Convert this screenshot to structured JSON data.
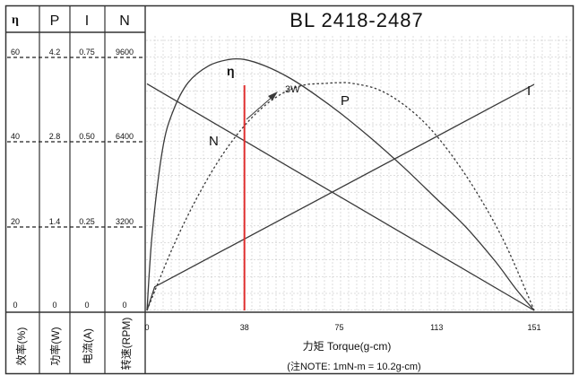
{
  "title": "BL 2418-2487",
  "header_cols": [
    "η",
    "P",
    "I",
    "N"
  ],
  "scale_columns": [
    {
      "name": "efficiency",
      "values": [
        "60",
        "40",
        "20",
        "0"
      ],
      "label": "效率(%)"
    },
    {
      "name": "power",
      "values": [
        "4.2",
        "2.8",
        "1.4",
        "0"
      ],
      "label": "功率(W)"
    },
    {
      "name": "current",
      "values": [
        "0.75",
        "0.50",
        "0.25",
        "0"
      ],
      "label": "电流(A)"
    },
    {
      "name": "speed",
      "values": [
        "9600",
        "6400",
        "3200",
        "0"
      ],
      "label": "转速(RPM)"
    }
  ],
  "x_tick_labels": [
    "0",
    "38",
    "75",
    "113",
    "151"
  ],
  "xlabel": "力矩 Torque(g-cm)",
  "note": "(注NOTE: 1mN-m = 10.2g-cm)",
  "annotations": {
    "power_rating": "3W"
  },
  "colors": {
    "line": "#3a3a3a",
    "marker": "#e03030",
    "grid": "#bdbdbd"
  },
  "chart_data": {
    "type": "line",
    "title": "BL 2418-2487",
    "xlabel": "力矩 Torque(g-cm)",
    "x_ticks": [
      0,
      38,
      75,
      113,
      151
    ],
    "xlim": [
      0,
      151
    ],
    "marker_x": 38,
    "grid": true,
    "series": [
      {
        "name": "η",
        "axis": "效率(%)",
        "ylim": [
          0,
          60
        ],
        "x": [
          0,
          2,
          6,
          10,
          16,
          24,
          32,
          38,
          46,
          56,
          66,
          76,
          88,
          100,
          112,
          124,
          136,
          144,
          151
        ],
        "values": [
          0,
          18,
          38,
          47,
          54,
          58,
          59.5,
          59.5,
          58,
          55,
          51,
          46.5,
          40.5,
          34,
          27,
          20,
          11.5,
          5,
          0
        ]
      },
      {
        "name": "P",
        "axis": "功率(W)",
        "ylim": [
          0,
          4.2
        ],
        "x": [
          0,
          10,
          20,
          30,
          40,
          50,
          60,
          70,
          75,
          80,
          90,
          100,
          110,
          120,
          130,
          140,
          151
        ],
        "values": [
          0,
          1.04,
          1.91,
          2.62,
          3.16,
          3.53,
          3.73,
          3.77,
          3.78,
          3.77,
          3.67,
          3.42,
          3.04,
          2.51,
          1.86,
          1.08,
          0
        ]
      },
      {
        "name": "N",
        "axis": "转速(RPM)",
        "ylim": [
          0,
          9600
        ],
        "x": [
          0,
          151
        ],
        "values": [
          8600,
          0
        ]
      },
      {
        "name": "I",
        "axis": "电流(A)",
        "ylim": [
          0,
          0.75
        ],
        "x": [
          0,
          3,
          151
        ],
        "values": [
          0,
          0.07,
          0.67
        ]
      }
    ]
  }
}
